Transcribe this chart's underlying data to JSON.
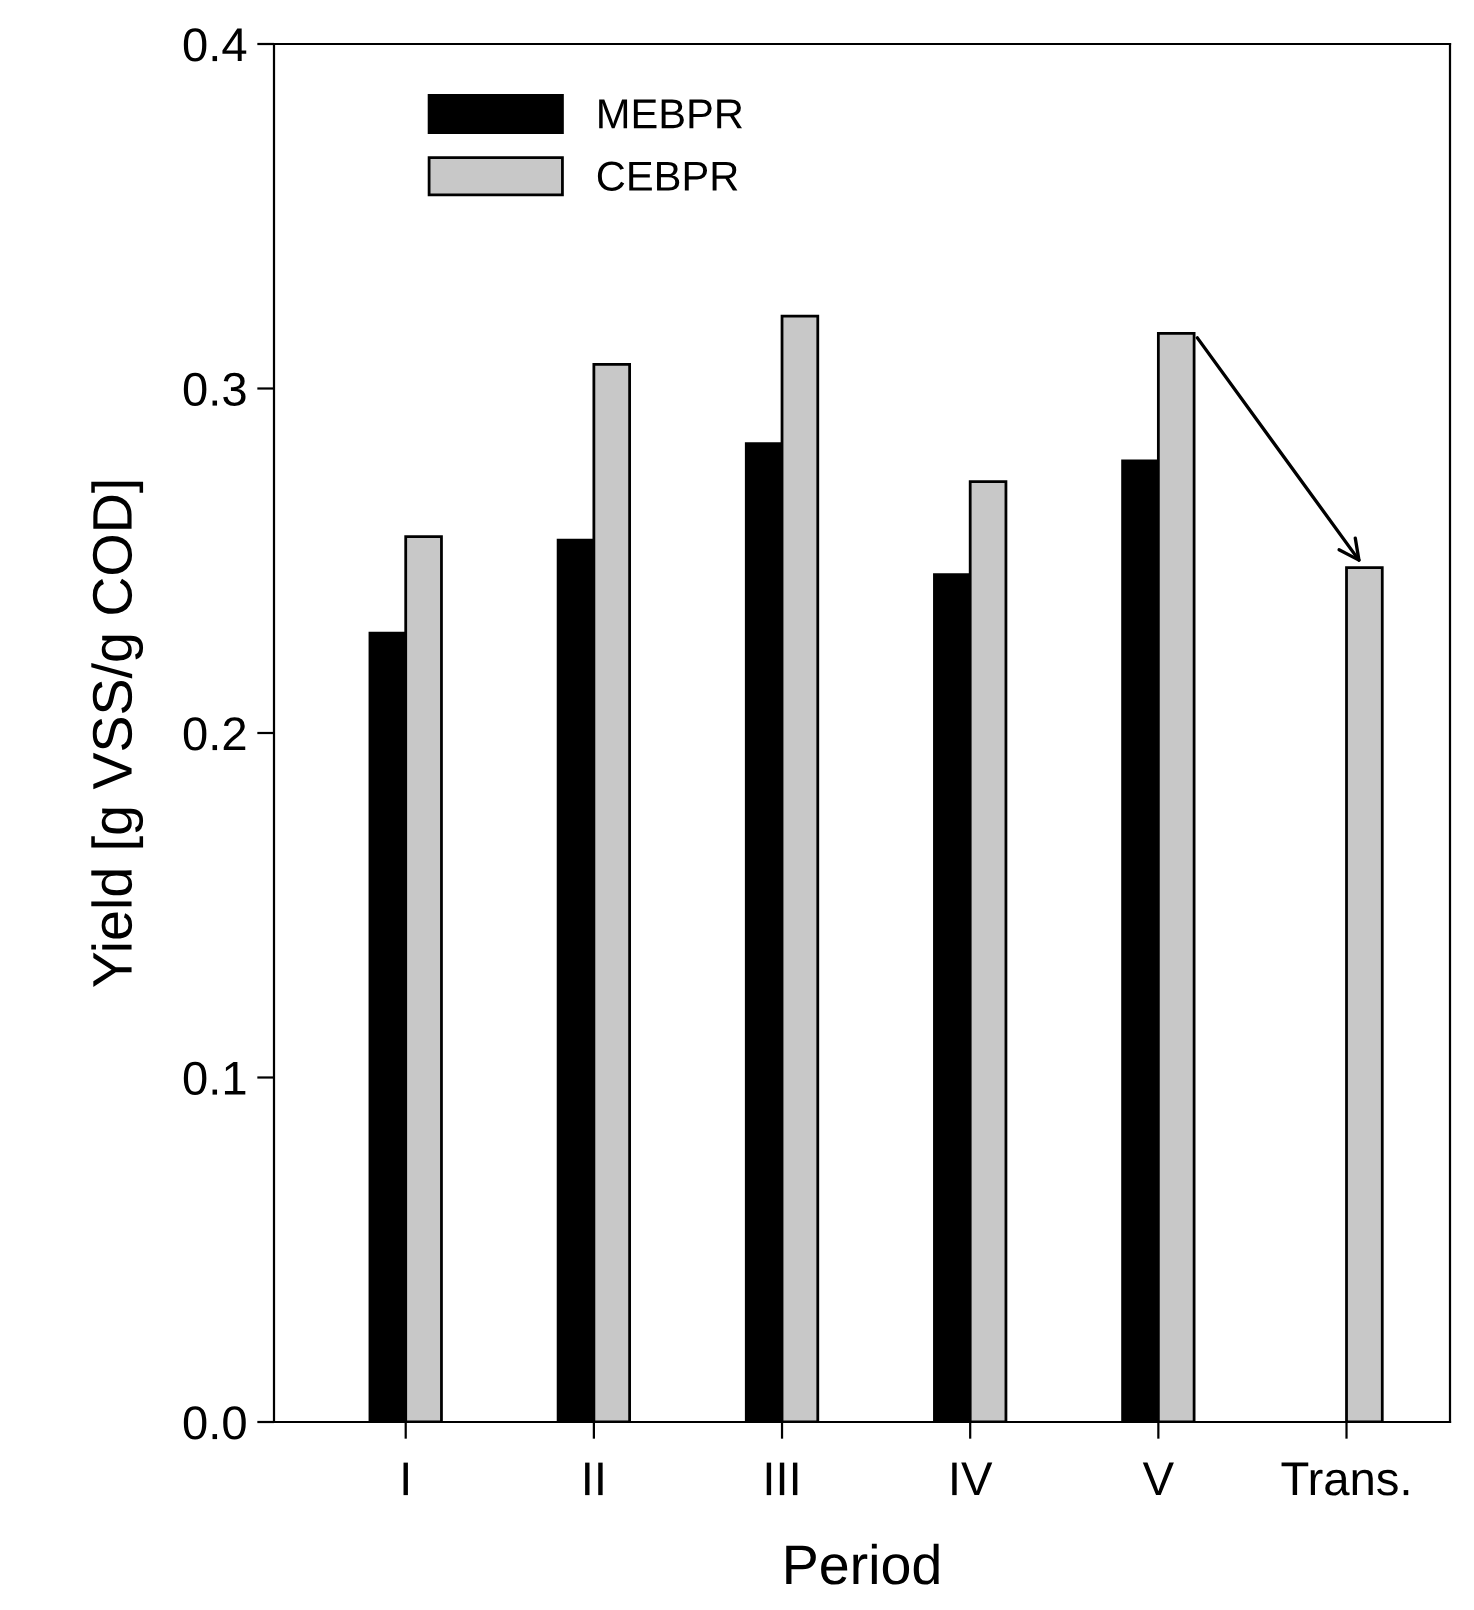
{
  "chart_data": {
    "type": "bar",
    "xlabel": "Period",
    "ylabel": "Yield [g VSS/g COD]",
    "categories": [
      "I",
      "II",
      "III",
      "IV",
      "V",
      "Trans."
    ],
    "series": [
      {
        "name": "MEBPR",
        "color": "#000000",
        "values": [
          0.229,
          0.256,
          0.284,
          0.246,
          0.279,
          null
        ]
      },
      {
        "name": "CEBPR",
        "color": "#c8c8c8",
        "values": [
          0.257,
          0.307,
          0.321,
          0.273,
          0.316,
          0.248
        ]
      }
    ],
    "ylim": [
      0,
      0.4
    ],
    "yticks": [
      {
        "value": 0,
        "label": "0.0"
      },
      0.1,
      0.2,
      0.3,
      0.4
    ],
    "grid": false,
    "legend": "top left"
  }
}
